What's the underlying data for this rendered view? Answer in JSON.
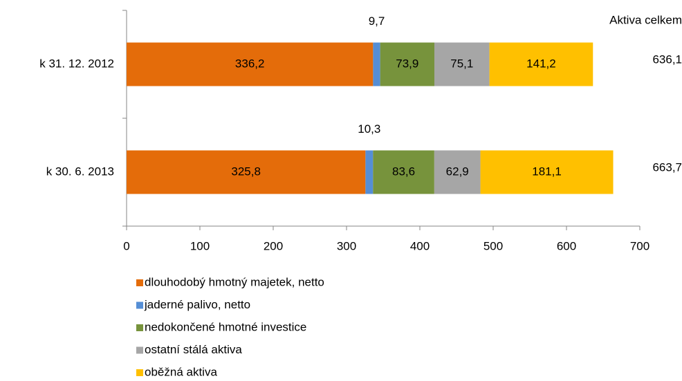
{
  "chart_data": {
    "type": "stacked_barh",
    "categories": [
      "k 31. 12. 2012",
      "k 30. 6. 2013"
    ],
    "series": [
      {
        "name": "dlouhodobý hmotný majetek, netto",
        "color": "#e46c0a",
        "values": [
          336.2,
          325.8
        ],
        "value_labels": [
          "336,2",
          "325,8"
        ]
      },
      {
        "name": "jaderné palivo, netto",
        "color": "#558ed5",
        "values": [
          9.7,
          10.3
        ],
        "value_labels": [
          "9,7",
          "10,3"
        ]
      },
      {
        "name": "nedokončené hmotné investice",
        "color": "#77933c",
        "values": [
          73.9,
          83.6
        ],
        "value_labels": [
          "73,9",
          "83,6"
        ]
      },
      {
        "name": "ostatní stálá aktiva",
        "color": "#a6a6a6",
        "values": [
          75.1,
          62.9
        ],
        "value_labels": [
          "75,1",
          "62,9"
        ]
      },
      {
        "name": "oběžná aktiva",
        "color": "#ffc000",
        "values": [
          141.2,
          181.1
        ],
        "value_labels": [
          "141,2",
          "181,1"
        ]
      }
    ],
    "totals": {
      "label": "Aktiva celkem",
      "values": [
        636.1,
        663.7
      ],
      "value_labels": [
        "636,1",
        "663,7"
      ]
    },
    "xlim": [
      0,
      700
    ],
    "xticks": [
      0,
      100,
      200,
      300,
      400,
      500,
      600,
      700
    ],
    "grid": false,
    "legend": "bottom"
  }
}
